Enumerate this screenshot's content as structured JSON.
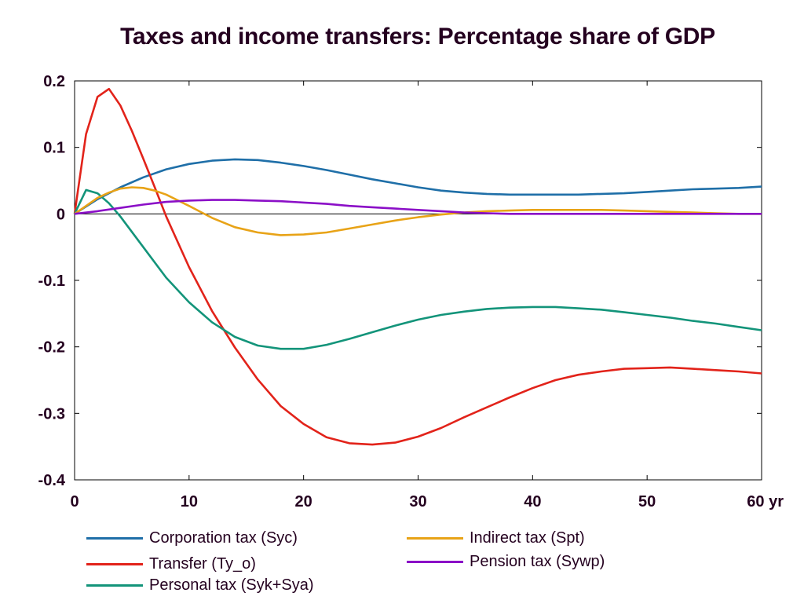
{
  "chart_data": {
    "type": "line",
    "title": "Taxes and income transfers: Percentage share of GDP",
    "xlim": [
      0,
      60
    ],
    "ylim": [
      -0.4,
      0.2
    ],
    "x_ticks": [
      "0",
      "10",
      "20",
      "30",
      "40",
      "50",
      "60 yr"
    ],
    "y_ticks": [
      "-0.4",
      "-0.3",
      "-0.2",
      "-0.1",
      "0",
      "0.1",
      "0.2"
    ],
    "series": [
      {
        "name": "Corporation tax (Syc)",
        "color": "#1f6fa8",
        "x": [
          0,
          2,
          4,
          6,
          8,
          10,
          12,
          14,
          16,
          18,
          20,
          22,
          24,
          26,
          28,
          30,
          32,
          34,
          36,
          38,
          40,
          42,
          44,
          46,
          48,
          50,
          52,
          54,
          56,
          58,
          60
        ],
        "y": [
          0,
          0.022,
          0.04,
          0.055,
          0.067,
          0.075,
          0.08,
          0.082,
          0.081,
          0.077,
          0.072,
          0.066,
          0.059,
          0.052,
          0.046,
          0.04,
          0.035,
          0.032,
          0.03,
          0.029,
          0.029,
          0.029,
          0.029,
          0.03,
          0.031,
          0.033,
          0.035,
          0.037,
          0.038,
          0.039,
          0.041
        ]
      },
      {
        "name": "Transfer (Ty_o)",
        "color": "#e2231a",
        "x": [
          0,
          1,
          2,
          3,
          4,
          5,
          6,
          7,
          8,
          10,
          12,
          14,
          16,
          18,
          20,
          22,
          24,
          26,
          28,
          30,
          32,
          34,
          36,
          38,
          40,
          42,
          44,
          46,
          48,
          50,
          52,
          54,
          56,
          58,
          60
        ],
        "y": [
          0,
          0.12,
          0.176,
          0.188,
          0.163,
          0.125,
          0.083,
          0.04,
          -0.004,
          -0.08,
          -0.146,
          -0.201,
          -0.249,
          -0.289,
          -0.316,
          -0.336,
          -0.345,
          -0.347,
          -0.344,
          -0.335,
          -0.322,
          -0.306,
          -0.291,
          -0.276,
          -0.262,
          -0.25,
          -0.242,
          -0.237,
          -0.233,
          -0.232,
          -0.231,
          -0.233,
          -0.235,
          -0.237,
          -0.24
        ]
      },
      {
        "name": "Personal tax (Syk+Sya)",
        "color": "#13947a",
        "x": [
          0,
          1,
          2,
          3,
          4,
          6,
          8,
          10,
          12,
          14,
          16,
          18,
          20,
          22,
          24,
          26,
          28,
          30,
          32,
          34,
          36,
          38,
          40,
          42,
          44,
          46,
          48,
          50,
          52,
          54,
          56,
          58,
          60
        ],
        "y": [
          0,
          0.036,
          0.031,
          0.016,
          -0.004,
          -0.05,
          -0.096,
          -0.133,
          -0.163,
          -0.185,
          -0.198,
          -0.203,
          -0.203,
          -0.197,
          -0.188,
          -0.178,
          -0.168,
          -0.159,
          -0.152,
          -0.147,
          -0.143,
          -0.141,
          -0.14,
          -0.14,
          -0.142,
          -0.144,
          -0.148,
          -0.152,
          -0.156,
          -0.161,
          -0.165,
          -0.17,
          -0.175
        ]
      },
      {
        "name": "Indirect tax (Spt)",
        "color": "#e8a317",
        "x": [
          0,
          1,
          2,
          3,
          4,
          5,
          6,
          7,
          8,
          10,
          12,
          14,
          16,
          18,
          20,
          22,
          24,
          26,
          28,
          30,
          32,
          34,
          36,
          38,
          40,
          42,
          44,
          46,
          48,
          50,
          52,
          54,
          56,
          58,
          60
        ],
        "y": [
          0,
          0.012,
          0.024,
          0.032,
          0.038,
          0.04,
          0.039,
          0.035,
          0.029,
          0.012,
          -0.006,
          -0.02,
          -0.028,
          -0.032,
          -0.031,
          -0.028,
          -0.022,
          -0.016,
          -0.01,
          -0.005,
          -0.001,
          0.002,
          0.004,
          0.005,
          0.006,
          0.006,
          0.006,
          0.006,
          0.005,
          0.004,
          0.003,
          0.002,
          0.001,
          0.0,
          0.0
        ]
      },
      {
        "name": "Pension tax (Sywp)",
        "color": "#8b0fc7",
        "x": [
          0,
          2,
          4,
          6,
          8,
          10,
          12,
          14,
          16,
          18,
          20,
          22,
          24,
          26,
          28,
          30,
          32,
          34,
          36,
          38,
          40,
          42,
          44,
          46,
          48,
          50,
          52,
          54,
          56,
          58,
          60
        ],
        "y": [
          0,
          0.004,
          0.009,
          0.014,
          0.018,
          0.02,
          0.021,
          0.021,
          0.02,
          0.019,
          0.017,
          0.015,
          0.012,
          0.01,
          0.008,
          0.006,
          0.004,
          0.002,
          0.001,
          0.0,
          0.0,
          0.0,
          0.0,
          0.0,
          0.0,
          0.0,
          0.0,
          0.0,
          0.0,
          0.0,
          0.0
        ]
      }
    ]
  }
}
